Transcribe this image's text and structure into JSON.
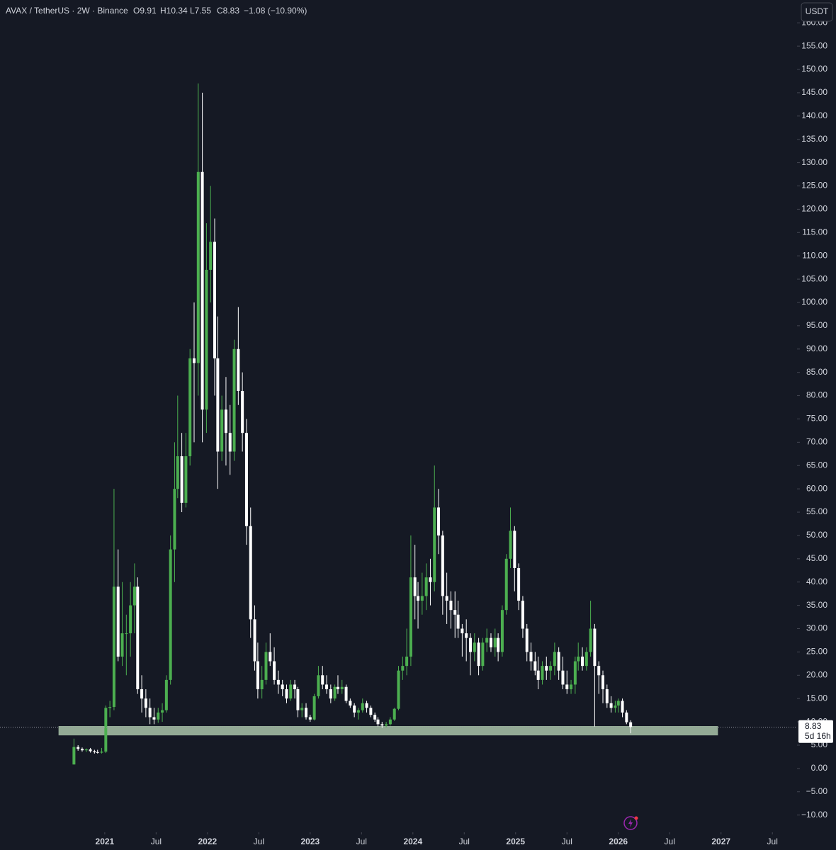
{
  "header": {
    "symbol": "AVAX / TetherUS · 2W · Binance",
    "open": "O9.91",
    "high": "H10.34",
    "low": "L7.55",
    "close": "C8.83",
    "change": "−1.08 (−10.90%)",
    "currency": "USDT"
  },
  "chart_data": {
    "type": "candlestick",
    "x": [
      2020.7,
      2020.74,
      2020.78,
      2020.82,
      2020.86,
      2020.9,
      2020.93,
      2020.97,
      2021.01,
      2021.05,
      2021.09,
      2021.13,
      2021.17,
      2021.21,
      2021.25,
      2021.29,
      2021.32,
      2021.36,
      2021.4,
      2021.44,
      2021.48,
      2021.52,
      2021.56,
      2021.6,
      2021.64,
      2021.68,
      2021.71,
      2021.75,
      2021.79,
      2021.83,
      2021.87,
      2021.91,
      2021.95,
      2021.99,
      2022.03,
      2022.07,
      2022.1,
      2022.14,
      2022.18,
      2022.22,
      2022.26,
      2022.3,
      2022.34,
      2022.38,
      2022.42,
      2022.46,
      2022.49,
      2022.53,
      2022.57,
      2022.61,
      2022.65,
      2022.69,
      2022.73,
      2022.77,
      2022.81,
      2022.85,
      2022.88,
      2022.92,
      2022.96,
      2023.0,
      2023.04,
      2023.08,
      2023.12,
      2023.16,
      2023.2,
      2023.24,
      2023.27,
      2023.31,
      2023.35,
      2023.39,
      2023.43,
      2023.47,
      2023.51,
      2023.55,
      2023.59,
      2023.63,
      2023.66,
      2023.7,
      2023.74,
      2023.78,
      2023.82,
      2023.86,
      2023.9,
      2023.94,
      2023.98,
      2024.02,
      2024.05,
      2024.09,
      2024.13,
      2024.17,
      2024.21,
      2024.25,
      2024.29,
      2024.33,
      2024.37,
      2024.41,
      2024.44,
      2024.48,
      2024.52,
      2024.56,
      2024.6,
      2024.64,
      2024.68,
      2024.72,
      2024.76,
      2024.8,
      2024.83,
      2024.87,
      2024.91,
      2024.95,
      2024.99,
      2025.03,
      2025.07,
      2025.11,
      2025.15,
      2025.19,
      2025.22,
      2025.26,
      2025.3,
      2025.34,
      2025.38,
      2025.42,
      2025.46,
      2025.5,
      2025.54,
      2025.58,
      2025.61,
      2025.65,
      2025.69,
      2025.73,
      2025.77,
      2025.81,
      2025.85,
      2025.89,
      2025.93,
      2025.97,
      2026.0,
      2026.04,
      2026.08,
      2026.12
    ],
    "open": [
      0.85,
      4.6,
      4.2,
      3.9,
      4.1,
      3.7,
      3.5,
      3.4,
      3.6,
      13.0,
      13.2,
      39,
      24,
      29,
      29,
      35,
      39,
      17,
      15,
      13,
      11,
      10.5,
      12,
      12.5,
      19,
      47,
      60,
      67,
      57,
      67,
      88,
      87,
      128,
      77,
      107,
      113,
      88,
      68,
      77,
      72,
      68,
      90,
      81,
      72,
      52,
      32,
      23,
      17,
      19,
      25,
      23,
      19,
      18,
      17,
      15,
      18,
      17,
      12.5,
      13,
      11,
      10.5,
      15.5,
      20,
      18,
      17,
      15,
      17.5,
      17,
      17.5,
      14.5,
      13.5,
      12,
      12.5,
      14,
      13,
      11.5,
      10.5,
      9.5,
      9.2,
      9.5,
      10.5,
      12.8,
      21,
      22,
      24,
      41,
      37,
      36,
      37,
      41,
      40,
      56,
      50,
      37,
      36,
      34,
      33,
      30,
      29,
      28,
      25,
      27,
      22,
      27,
      28,
      26,
      28,
      25,
      34,
      45,
      51,
      43,
      36,
      30,
      25,
      23,
      21,
      19,
      22,
      21,
      22,
      25,
      21,
      18,
      17,
      18,
      23,
      24,
      22,
      25,
      30,
      22,
      20,
      17,
      14,
      13,
      13.5,
      14.5,
      12,
      9.91
    ],
    "high": [
      6.4,
      5.0,
      4.5,
      4.3,
      4.4,
      4.0,
      4.0,
      4.4,
      13.5,
      14.5,
      60,
      47,
      40,
      33,
      40,
      44,
      41,
      20,
      17,
      15,
      13,
      13,
      14,
      20,
      50,
      70,
      80,
      72,
      72,
      90,
      100,
      147,
      145,
      117,
      125,
      118,
      97,
      80,
      84,
      78,
      92,
      99,
      85,
      75,
      56,
      35,
      27,
      22,
      27,
      29,
      26,
      21,
      19,
      18,
      19,
      19,
      17.5,
      14,
      14,
      11.5,
      16,
      22,
      22,
      20,
      18,
      18,
      20,
      19,
      18,
      15,
      14,
      13,
      15,
      14.5,
      13.5,
      12,
      11,
      10,
      10,
      11,
      13,
      22,
      24,
      30,
      50,
      48,
      40,
      42,
      44,
      45,
      65,
      60,
      51,
      42,
      38,
      38,
      36,
      31,
      32,
      29,
      29,
      28,
      28,
      30,
      29,
      30,
      29,
      35,
      46,
      56,
      52,
      44,
      37,
      31,
      27,
      25,
      24,
      23,
      24,
      23,
      27,
      26,
      24,
      21,
      19,
      24,
      27,
      26,
      26,
      36,
      31,
      23,
      21,
      18,
      15.5,
      14.5,
      15,
      15,
      12.5,
      10.34
    ],
    "low": [
      0.85,
      3.8,
      3.6,
      3.5,
      3.4,
      3.2,
      3.2,
      3.2,
      3.3,
      11.0,
      12.5,
      23,
      22,
      20,
      24,
      29,
      16,
      12,
      11,
      9.5,
      9.5,
      9.8,
      10,
      12,
      18,
      40,
      58,
      55,
      56,
      65,
      70,
      80,
      70,
      72,
      100,
      80,
      60,
      66,
      65,
      63,
      66,
      78,
      68,
      48,
      28,
      21,
      15,
      15,
      18,
      22,
      18,
      16,
      15.5,
      14,
      14.5,
      15,
      11,
      11,
      10.5,
      10,
      10.3,
      15,
      17,
      16,
      14,
      14.5,
      16,
      16,
      14,
      13,
      11,
      10.5,
      12,
      12,
      11,
      10,
      9,
      8.7,
      8.8,
      9.2,
      10.2,
      12.5,
      19,
      20,
      22,
      32,
      30,
      33,
      34,
      35,
      38,
      46,
      33,
      31,
      30,
      28,
      28,
      24,
      23,
      20,
      23,
      20,
      21,
      25,
      25,
      24,
      23,
      24,
      33,
      43,
      38,
      34,
      28,
      23,
      21,
      20,
      17,
      18,
      19,
      19,
      20,
      19,
      17,
      16,
      16,
      16,
      21,
      21,
      21,
      24,
      9,
      16,
      14,
      13,
      12,
      12,
      12,
      11,
      9.5,
      7.55
    ],
    "close": [
      4.6,
      4.2,
      3.9,
      4.1,
      3.7,
      3.5,
      3.4,
      3.6,
      13.0,
      13.2,
      39,
      24,
      29,
      29,
      35,
      39,
      17,
      15,
      13,
      11,
      10.5,
      12,
      12.5,
      19,
      47,
      60,
      67,
      57,
      67,
      88,
      87,
      128,
      77,
      107,
      113,
      88,
      68,
      77,
      72,
      68,
      90,
      81,
      72,
      52,
      32,
      23,
      17,
      19,
      25,
      23,
      19,
      18,
      17,
      15,
      18,
      17,
      12.5,
      13,
      11,
      10.5,
      15.5,
      20,
      18,
      17,
      15,
      17.5,
      17,
      17.5,
      14.5,
      13.5,
      12,
      12.5,
      14,
      13,
      11.5,
      10.5,
      9.5,
      9.2,
      9.5,
      10.5,
      12.8,
      21,
      22,
      24,
      41,
      37,
      36,
      37,
      41,
      40,
      56,
      50,
      37,
      36,
      34,
      33,
      30,
      29,
      28,
      25,
      27,
      22,
      27,
      28,
      26,
      28,
      25,
      34,
      45,
      51,
      43,
      36,
      30,
      25,
      23,
      21,
      19,
      22,
      21,
      22,
      25,
      21,
      18,
      17,
      18,
      23,
      24,
      22,
      25,
      30,
      22,
      20,
      17,
      14,
      13,
      13.5,
      14.5,
      12,
      9.91,
      8.83
    ],
    "up_color": "#4caf50",
    "down_color": "#ffffff",
    "xlim": [
      2019.98,
      2027.74
    ],
    "xticks": [
      2021,
      {
        "value": 2021.5,
        "label": "Jul"
      },
      2022,
      {
        "value": 2022.5,
        "label": "Jul"
      },
      2023,
      {
        "value": 2023.5,
        "label": "Jul"
      },
      2024,
      {
        "value": 2024.5,
        "label": "Jul"
      },
      2025,
      {
        "value": 2025.5,
        "label": "Jul"
      },
      2026,
      {
        "value": 2026.5,
        "label": "Jul"
      },
      2027,
      {
        "value": 2027.5,
        "label": "Jul"
      }
    ],
    "ylim": [
      -13.7,
      164.9
    ],
    "yticks": [
      {
        "value": -10,
        "label": "−10.00"
      },
      {
        "value": -5,
        "label": "−5.00"
      },
      {
        "value": 0,
        "label": "0.00"
      },
      {
        "value": 5,
        "label": "5.00"
      },
      {
        "value": 10,
        "label": "10.00"
      },
      {
        "value": 15,
        "label": "15.00"
      },
      {
        "value": 20,
        "label": "20.00"
      },
      {
        "value": 25,
        "label": "25.00"
      },
      {
        "value": 30,
        "label": "30.00"
      },
      {
        "value": 35,
        "label": "35.00"
      },
      {
        "value": 40,
        "label": "40.00"
      },
      {
        "value": 45,
        "label": "45.00"
      },
      {
        "value": 50,
        "label": "50.00"
      },
      {
        "value": 55,
        "label": "55.00"
      },
      {
        "value": 60,
        "label": "60.00"
      },
      {
        "value": 65,
        "label": "65.00"
      },
      {
        "value": 70,
        "label": "70.00"
      },
      {
        "value": 75,
        "label": "75.00"
      },
      {
        "value": 80,
        "label": "80.00"
      },
      {
        "value": 85,
        "label": "85.00"
      },
      {
        "value": 90,
        "label": "90.00"
      },
      {
        "value": 95,
        "label": "95.00"
      },
      {
        "value": 100,
        "label": "100.00"
      },
      {
        "value": 105,
        "label": "105.00"
      },
      {
        "value": 110,
        "label": "110.00"
      },
      {
        "value": 115,
        "label": "115.00"
      },
      {
        "value": 120,
        "label": "120.00"
      },
      {
        "value": 125,
        "label": "125.00"
      },
      {
        "value": 130,
        "label": "130.00"
      },
      {
        "value": 135,
        "label": "135.00"
      },
      {
        "value": 140,
        "label": "140.00"
      },
      {
        "value": 145,
        "label": "145.00"
      },
      {
        "value": 150,
        "label": "150.00"
      },
      {
        "value": 155,
        "label": "155.00"
      },
      {
        "value": 160,
        "label": "160.00"
      }
    ],
    "zone": {
      "x": [
        2020.55,
        2026.97
      ],
      "y": [
        7.1,
        9.1
      ],
      "color": "#a9c4a9"
    },
    "countdown": "5d 16h"
  }
}
